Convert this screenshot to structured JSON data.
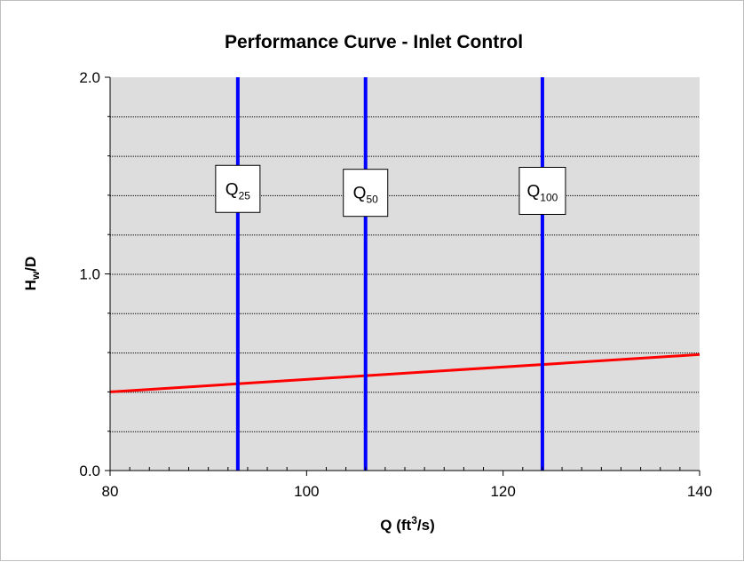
{
  "chart_data": {
    "type": "line",
    "title": "Performance Curve - Inlet Control",
    "xlabel": {
      "main": "Q (ft",
      "sup": "3",
      "tail": "/s)"
    },
    "ylabel": {
      "main": "H",
      "sub": "w",
      "tail": "/D"
    },
    "xlim": [
      80,
      140
    ],
    "ylim": [
      0,
      2.0
    ],
    "x_ticks": [
      {
        "value": 80,
        "label": "80"
      },
      {
        "value": 100,
        "label": "100"
      },
      {
        "value": 120,
        "label": "120"
      },
      {
        "value": 140,
        "label": "140"
      }
    ],
    "y_ticks": [
      {
        "value": 0.0,
        "label": "0.0"
      },
      {
        "value": 1.0,
        "label": "1.0"
      },
      {
        "value": 2.0,
        "label": "2.0"
      }
    ],
    "y_gridlines": [
      0.2,
      0.4,
      0.6,
      0.8,
      1.0,
      1.2,
      1.4,
      1.6,
      1.8
    ],
    "x_minor_step": 2,
    "background_color": "#dddddd",
    "series": [
      {
        "x": [
          80,
          140
        ],
        "y": [
          0.4,
          0.59
        ],
        "color": "#ff0000"
      }
    ],
    "markers": [
      {
        "label": "Q",
        "sub": "25",
        "x": 93,
        "label_y": 1.43,
        "color": "#0000ff"
      },
      {
        "label": "Q",
        "sub": "50",
        "x": 106,
        "label_y": 1.41,
        "color": "#0000ff"
      },
      {
        "label": "Q",
        "sub": "100",
        "x": 124,
        "label_y": 1.42,
        "color": "#0000ff"
      }
    ]
  }
}
